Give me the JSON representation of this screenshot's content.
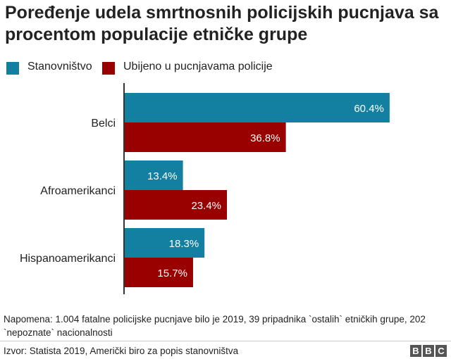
{
  "title": "Poređenje udela smrtnosnih policijskih pucnjava sa procentom populacije etničke grupe",
  "chart_data": {
    "type": "bar",
    "orientation": "horizontal",
    "title": "Poređenje udela smrtnosnih policijskih pucnjava sa procentom populacije etničke grupe",
    "categories": [
      "Belci",
      "Afroamerikanci",
      "Hispanoamerikanci"
    ],
    "series": [
      {
        "name": "Stanovništvo",
        "color": "#1380a1",
        "values": [
          60.4,
          13.4,
          18.3
        ]
      },
      {
        "name": "Ubijeno u pucnjavama policije",
        "color": "#990000",
        "values": [
          36.8,
          23.4,
          15.7
        ]
      }
    ],
    "value_suffix": "%",
    "xlim": [
      0,
      100
    ],
    "xlabel": "",
    "ylabel": "",
    "grid": false,
    "legend_position": "top-left"
  },
  "legend": {
    "items": [
      {
        "label": "Stanovništvo",
        "color": "#1380a1"
      },
      {
        "label": "Ubijeno u pucnjavama policije",
        "color": "#990000"
      }
    ]
  },
  "note": "Napomena: 1.004 fatalne policijske pucnjave bilo je 2019, 39 pripadnika `ostalih` etničkih grupe, 202 `nepoznate` nacionalnosti",
  "source": "Izvor: Statista 2019, Američki biro za popis stanovništva",
  "logo": {
    "letters": [
      "B",
      "B",
      "C"
    ]
  }
}
